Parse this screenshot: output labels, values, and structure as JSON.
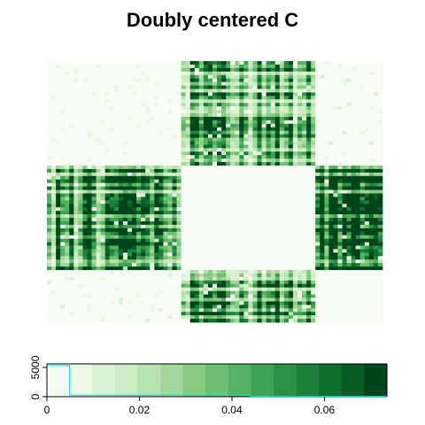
{
  "chart_data": {
    "type": "heatmap",
    "title": "Doubly centered C",
    "n": 75,
    "blocks": [
      30,
      30,
      15
    ],
    "block_mean": [
      [
        0.003,
        0.045,
        0.004
      ],
      [
        0.045,
        0.0,
        0.055
      ],
      [
        0.004,
        0.055,
        0.001
      ]
    ],
    "palette": [
      "#f7fcf5",
      "#ebf7e7",
      "#dcf2d6",
      "#cbebc4",
      "#b7e2b1",
      "#a0d79b",
      "#88cb85",
      "#6ebf71",
      "#55b163",
      "#3ea254",
      "#2b9147",
      "#1c7f3b",
      "#0e6e2f",
      "#055d25",
      "#00441b"
    ],
    "color_key": {
      "x_range": [
        0,
        0.0735
      ],
      "x_ticks": [
        "0",
        "0.02",
        "0.04",
        "0.06"
      ],
      "x_tick_values": [
        0,
        0.02,
        0.04,
        0.06
      ],
      "y_ticks": [
        "0",
        "5000"
      ],
      "y_tick_values": [
        0,
        5000
      ],
      "y_range": [
        0,
        5600
      ],
      "histogram": [
        {
          "x0": 0.0,
          "x1": 0.0049,
          "count": 5300
        },
        {
          "x0": 0.0049,
          "x1": 0.044,
          "count": 260
        },
        {
          "x0": 0.044,
          "x1": 0.0735,
          "count": 55
        }
      ],
      "histogram_color": "#00e5e5"
    }
  }
}
